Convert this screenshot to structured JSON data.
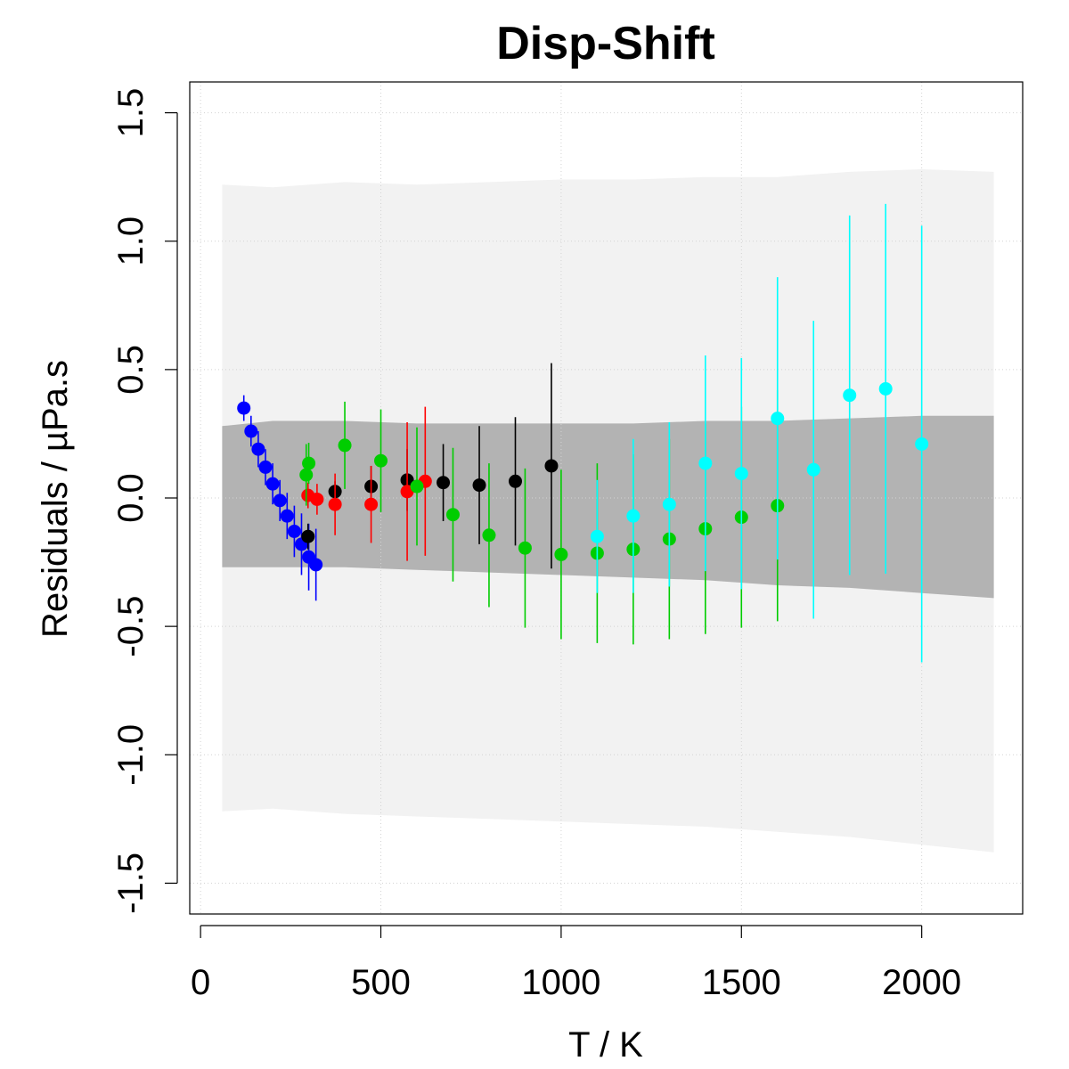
{
  "chart_data": {
    "type": "scatter",
    "title": "Disp-Shift",
    "xlabel": "T / K",
    "ylabel": "Residuals / µPa.s",
    "xlim": [
      -30,
      2280
    ],
    "ylim": [
      -1.62,
      1.62
    ],
    "x_ticks": [
      0,
      500,
      1000,
      1500,
      2000
    ],
    "x_tick_labels": [
      "0",
      "500",
      "1000",
      "1500",
      "2000"
    ],
    "y_ticks": [
      -1.5,
      -1.0,
      -0.5,
      0.0,
      0.5,
      1.0,
      1.5
    ],
    "y_tick_labels": [
      "-1.5",
      "-1.0",
      "-0.5",
      "0.0",
      "0.5",
      "1.0",
      "1.5"
    ],
    "grid": true,
    "bands": [
      {
        "name": "outer",
        "color": "#f2f2f2",
        "x": [
          60,
          200,
          400,
          600,
          800,
          1000,
          1200,
          1400,
          1600,
          1800,
          2000,
          2200
        ],
        "upper": [
          1.22,
          1.21,
          1.23,
          1.22,
          1.23,
          1.24,
          1.24,
          1.25,
          1.25,
          1.27,
          1.28,
          1.27
        ],
        "lower": [
          -1.22,
          -1.21,
          -1.23,
          -1.24,
          -1.25,
          -1.26,
          -1.27,
          -1.28,
          -1.3,
          -1.32,
          -1.35,
          -1.38
        ]
      },
      {
        "name": "inner",
        "color": "#b3b3b3",
        "x": [
          60,
          200,
          400,
          600,
          800,
          1000,
          1200,
          1400,
          1600,
          1800,
          2000,
          2200
        ],
        "upper": [
          0.28,
          0.3,
          0.3,
          0.29,
          0.29,
          0.29,
          0.29,
          0.3,
          0.3,
          0.31,
          0.32,
          0.32
        ],
        "lower": [
          -0.27,
          -0.27,
          -0.27,
          -0.28,
          -0.29,
          -0.3,
          -0.31,
          -0.32,
          -0.34,
          -0.35,
          -0.37,
          -0.39
        ]
      }
    ],
    "series": [
      {
        "name": "blue",
        "color": "#0000ff",
        "points": [
          {
            "x": 120,
            "y": 0.35,
            "err": 0.05
          },
          {
            "x": 140,
            "y": 0.26,
            "err": 0.06
          },
          {
            "x": 160,
            "y": 0.19,
            "err": 0.07
          },
          {
            "x": 180,
            "y": 0.12,
            "err": 0.07
          },
          {
            "x": 200,
            "y": 0.055,
            "err": 0.08
          },
          {
            "x": 220,
            "y": -0.01,
            "err": 0.08
          },
          {
            "x": 240,
            "y": -0.07,
            "err": 0.09
          },
          {
            "x": 260,
            "y": -0.13,
            "err": 0.1
          },
          {
            "x": 280,
            "y": -0.18,
            "err": 0.12
          },
          {
            "x": 300,
            "y": -0.23,
            "err": 0.13
          },
          {
            "x": 320,
            "y": -0.26,
            "err": 0.14
          }
        ]
      },
      {
        "name": "black",
        "color": "#000000",
        "points": [
          {
            "x": 298,
            "y": -0.15,
            "err": 0.05
          },
          {
            "x": 373,
            "y": 0.025,
            "err": 0.04
          },
          {
            "x": 473,
            "y": 0.045,
            "err": 0.08
          },
          {
            "x": 573,
            "y": 0.07,
            "err": 0.12
          },
          {
            "x": 673,
            "y": 0.06,
            "err": 0.15
          },
          {
            "x": 773,
            "y": 0.05,
            "err": 0.23
          },
          {
            "x": 873,
            "y": 0.065,
            "err": 0.25
          },
          {
            "x": 973,
            "y": 0.125,
            "err": 0.4
          }
        ]
      },
      {
        "name": "red",
        "color": "#ff0000",
        "points": [
          {
            "x": 298,
            "y": 0.01,
            "err": 0.05
          },
          {
            "x": 323,
            "y": -0.005,
            "err": 0.06
          },
          {
            "x": 373,
            "y": -0.025,
            "err": 0.12
          },
          {
            "x": 473,
            "y": -0.025,
            "err": 0.15
          },
          {
            "x": 573,
            "y": 0.025,
            "err": 0.27
          },
          {
            "x": 623,
            "y": 0.065,
            "err": 0.29
          }
        ]
      },
      {
        "name": "green",
        "color": "#00cd00",
        "points": [
          {
            "x": 293,
            "y": 0.09,
            "err": 0.12
          },
          {
            "x": 300,
            "y": 0.135,
            "err": 0.08
          },
          {
            "x": 400,
            "y": 0.205,
            "err": 0.17
          },
          {
            "x": 500,
            "y": 0.145,
            "err": 0.2
          },
          {
            "x": 600,
            "y": 0.045,
            "err": 0.23
          },
          {
            "x": 700,
            "y": -0.065,
            "err": 0.26
          },
          {
            "x": 800,
            "y": -0.145,
            "err": 0.28
          },
          {
            "x": 900,
            "y": -0.195,
            "err": 0.31
          },
          {
            "x": 1000,
            "y": -0.22,
            "err": 0.33
          },
          {
            "x": 1100,
            "y": -0.215,
            "err": 0.35
          },
          {
            "x": 1200,
            "y": -0.2,
            "err": 0.37
          },
          {
            "x": 1300,
            "y": -0.16,
            "err": 0.39
          },
          {
            "x": 1400,
            "y": -0.12,
            "err": 0.41
          },
          {
            "x": 1500,
            "y": -0.075,
            "err": 0.43
          },
          {
            "x": 1600,
            "y": -0.03,
            "err": 0.45
          }
        ]
      },
      {
        "name": "cyan",
        "color": "#00ffff",
        "points": [
          {
            "x": 1100,
            "y": -0.15,
            "err": 0.22
          },
          {
            "x": 1200,
            "y": -0.07,
            "err": 0.3
          },
          {
            "x": 1300,
            "y": -0.025,
            "err": 0.32
          },
          {
            "x": 1400,
            "y": 0.135,
            "err": 0.42
          },
          {
            "x": 1500,
            "y": 0.095,
            "err": 0.45
          },
          {
            "x": 1600,
            "y": 0.31,
            "err": 0.55
          },
          {
            "x": 1700,
            "y": 0.11,
            "err": 0.58
          },
          {
            "x": 1800,
            "y": 0.4,
            "err": 0.7
          },
          {
            "x": 1900,
            "y": 0.425,
            "err": 0.72
          },
          {
            "x": 2000,
            "y": 0.21,
            "err": 0.85
          }
        ]
      }
    ]
  }
}
